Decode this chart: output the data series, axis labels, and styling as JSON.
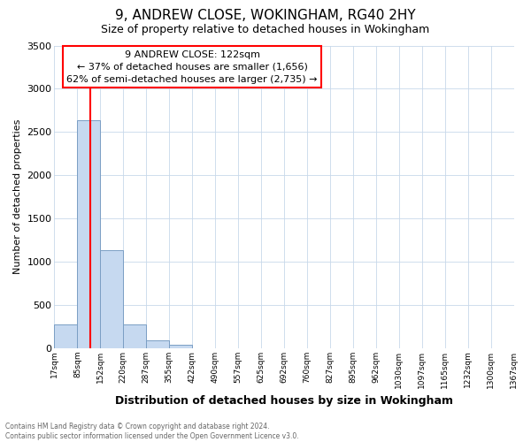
{
  "title": "9, ANDREW CLOSE, WOKINGHAM, RG40 2HY",
  "subtitle": "Size of property relative to detached houses in Wokingham",
  "xlabel": "Distribution of detached houses by size in Wokingham",
  "ylabel": "Number of detached properties",
  "bin_labels": [
    "17sqm",
    "85sqm",
    "152sqm",
    "220sqm",
    "287sqm",
    "355sqm",
    "422sqm",
    "490sqm",
    "557sqm",
    "625sqm",
    "692sqm",
    "760sqm",
    "827sqm",
    "895sqm",
    "962sqm",
    "1030sqm",
    "1097sqm",
    "1165sqm",
    "1232sqm",
    "1300sqm",
    "1367sqm"
  ],
  "bar_heights": [
    270,
    2640,
    1130,
    270,
    85,
    40,
    0,
    0,
    0,
    0,
    0,
    0,
    0,
    0,
    0,
    0,
    0,
    0,
    0,
    0
  ],
  "bar_color": "#c6d9f0",
  "bar_edge_color": "#7a9ec4",
  "vline_color": "red",
  "ylim": [
    0,
    3500
  ],
  "yticks": [
    0,
    500,
    1000,
    1500,
    2000,
    2500,
    3000,
    3500
  ],
  "annotation_title": "9 ANDREW CLOSE: 122sqm",
  "annotation_line1": "← 37% of detached houses are smaller (1,656)",
  "annotation_line2": "62% of semi-detached houses are larger (2,735) →",
  "annotation_box_color": "#ffffff",
  "annotation_box_edge": "red",
  "footer_line1": "Contains HM Land Registry data © Crown copyright and database right 2024.",
  "footer_line2": "Contains public sector information licensed under the Open Government Licence v3.0.",
  "background_color": "#ffffff",
  "grid_color": "#c8d8ea"
}
